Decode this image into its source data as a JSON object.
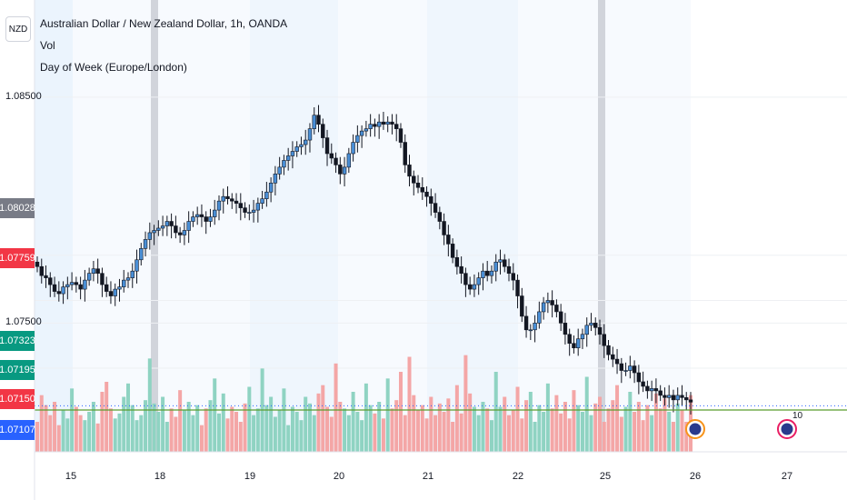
{
  "header": {
    "symbol_badge": "NZD",
    "title": "Australian Dollar / New Zealand Dollar, 1h, OANDA",
    "indicator_1": "Vol",
    "indicator_2": "Day of Week (Europe/London)"
  },
  "price_axis": {
    "labels": [
      {
        "value": 1.085,
        "text": "1.08500"
      },
      {
        "value": 1.075,
        "text": "1.07500"
      }
    ],
    "tags": [
      {
        "value": 1.08028,
        "text": "1.08028",
        "color": "#787b86"
      },
      {
        "value": 1.07759,
        "text": "1.07759",
        "color": "#f23645"
      },
      {
        "value": 1.07323,
        "text": "1.07323",
        "color": "#089981"
      },
      {
        "value": 1.07195,
        "text": "1.07195",
        "color": "#089981"
      },
      {
        "value": 1.0715,
        "text": "1.07150",
        "color": "#f23645"
      },
      {
        "value": 1.07107,
        "text": "1.07107",
        "color": "#2962ff"
      }
    ]
  },
  "time_axis": {
    "labels": [
      "15",
      "18",
      "19",
      "20",
      "21",
      "22",
      "25",
      "26",
      "27"
    ]
  },
  "events": [
    {
      "day": "26",
      "label": ""
    },
    {
      "day": "27",
      "label": "10"
    }
  ],
  "chart_data": {
    "type": "candlestick",
    "ylim": [
      1.0693,
      1.0893
    ],
    "last_price": 1.0715,
    "series": [
      {
        "name": "price",
        "values": [
          1.0775,
          1.0771,
          1.077,
          1.0767,
          1.0764,
          1.0763,
          1.0766,
          1.0767,
          1.0768,
          1.0767,
          1.0765,
          1.0769,
          1.0772,
          1.0774,
          1.0772,
          1.0767,
          1.0764,
          1.0762,
          1.0765,
          1.0766,
          1.0769,
          1.077,
          1.0773,
          1.0778,
          1.0783,
          1.0787,
          1.079,
          1.0791,
          1.0792,
          1.0793,
          1.0795,
          1.0793,
          1.079,
          1.0789,
          1.0791,
          1.0795,
          1.0797,
          1.0798,
          1.0797,
          1.0795,
          1.0797,
          1.08,
          1.0804,
          1.0806,
          1.0805,
          1.0804,
          1.0803,
          1.0801,
          1.0799,
          1.0799,
          1.08,
          1.0803,
          1.0805,
          1.0808,
          1.0812,
          1.0816,
          1.0819,
          1.0822,
          1.0824,
          1.0826,
          1.0828,
          1.0829,
          1.0831,
          1.0836,
          1.0842,
          1.0838,
          1.0832,
          1.0825,
          1.0823,
          1.082,
          1.0816,
          1.0819,
          1.0825,
          1.083,
          1.0833,
          1.0835,
          1.0836,
          1.0838,
          1.0837,
          1.0839,
          1.0838,
          1.0839,
          1.0838,
          1.0836,
          1.083,
          1.082,
          1.0815,
          1.0812,
          1.081,
          1.0808,
          1.0806,
          1.0803,
          1.0799,
          1.0795,
          1.0789,
          1.0785,
          1.0779,
          1.0775,
          1.0772,
          1.0767,
          1.0765,
          1.0767,
          1.077,
          1.0773,
          1.0771,
          1.0773,
          1.0777,
          1.0778,
          1.0775,
          1.0772,
          1.0769,
          1.0762,
          1.0753,
          1.0747,
          1.0747,
          1.075,
          1.0755,
          1.0759,
          1.076,
          1.0758,
          1.0755,
          1.075,
          1.0745,
          1.0741,
          1.0739,
          1.0743,
          1.0745,
          1.0749,
          1.075,
          1.0748,
          1.0745,
          1.074,
          1.0736,
          1.0734,
          1.0732,
          1.0729,
          1.0729,
          1.0731,
          1.0728,
          1.0724,
          1.0722,
          1.072,
          1.0721,
          1.072,
          1.0718,
          1.0717,
          1.0718,
          1.0716,
          1.0718,
          1.0717,
          1.0716,
          1.0715
        ]
      }
    ],
    "volume": {
      "values": [
        18,
        34,
        28,
        22,
        30,
        16,
        25,
        20,
        38,
        27,
        22,
        19,
        24,
        30,
        17,
        36,
        42,
        26,
        20,
        23,
        33,
        41,
        28,
        19,
        22,
        31,
        56,
        29,
        24,
        33,
        18,
        26,
        21,
        37,
        25,
        30,
        22,
        28,
        16,
        26,
        31,
        44,
        23,
        35,
        20,
        27,
        24,
        18,
        29,
        39,
        22,
        26,
        50,
        28,
        33,
        21,
        25,
        38,
        16,
        27,
        24,
        19,
        33,
        29,
        22,
        35,
        40,
        27,
        21,
        53,
        30,
        26,
        22,
        36,
        24,
        19,
        41,
        28,
        23,
        30,
        20,
        44,
        26,
        31,
        48,
        22,
        57,
        34,
        25,
        28,
        20,
        33,
        22,
        29,
        24,
        32,
        18,
        40,
        23,
        58,
        35,
        27,
        22,
        30,
        26,
        19,
        48,
        27,
        33,
        22,
        25,
        39,
        20,
        31,
        36,
        18,
        28,
        24,
        41,
        26,
        34,
        23,
        30,
        20,
        37,
        28,
        24,
        45,
        22,
        29,
        33,
        18,
        26,
        31,
        40,
        21,
        27,
        36,
        24,
        30,
        19,
        28,
        22,
        35,
        26,
        32,
        24,
        18,
        29,
        25
      ]
    }
  }
}
